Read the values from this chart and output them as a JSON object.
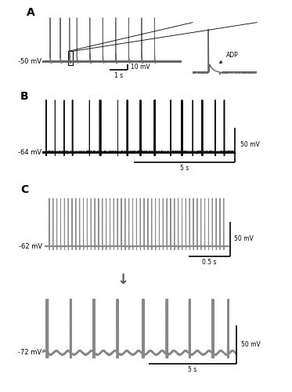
{
  "panel_A_label": "A",
  "panel_B_label": "B",
  "panel_C_label": "C",
  "rmp_A": "-50 mV",
  "rmp_B": "-64 mV",
  "rmp_C1": "-62 mV",
  "rmp_C2": "-72 mV",
  "scalebar_A_time": "1 s",
  "scalebar_A_volt": "10 mV",
  "scalebar_B_time": "5 s",
  "scalebar_B_volt": "50 mV",
  "scalebar_C1_time": "0.5 s",
  "scalebar_C1_volt": "50 mV",
  "scalebar_C2_time": "5 s",
  "scalebar_C2_volt": "50 mV",
  "adp_label": "ADP",
  "color_A": "#666666",
  "color_B": "#111111",
  "color_C": "#888888",
  "bg_color": "#ffffff"
}
